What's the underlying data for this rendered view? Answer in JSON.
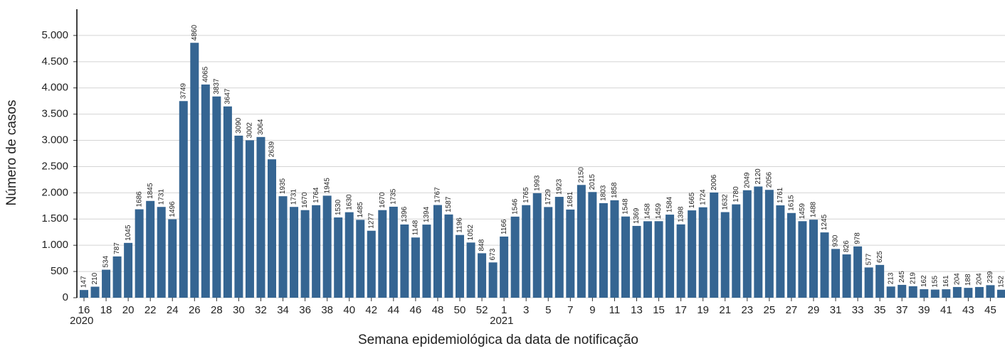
{
  "chart_data": {
    "type": "bar",
    "y_label": "Número de casos",
    "x_label": "Semana epidemiológica da data de notificação",
    "annotations": [
      "2020",
      "2021"
    ],
    "categories": [
      "16",
      null,
      "18",
      null,
      "20",
      null,
      "22",
      null,
      "24",
      null,
      "26",
      null,
      "28",
      null,
      "30",
      null,
      "32",
      null,
      "34",
      null,
      "36",
      null,
      "38",
      null,
      "40",
      null,
      "42",
      null,
      "44",
      null,
      "46",
      null,
      "48",
      null,
      "50",
      null,
      "52",
      null,
      "1",
      null,
      "3",
      null,
      "5",
      null,
      "7",
      null,
      "9",
      null,
      "11",
      null,
      "13",
      null,
      "15",
      null,
      "17",
      null,
      "19",
      null,
      "21",
      null,
      "23",
      null,
      "25",
      null,
      "27",
      null,
      "29",
      null,
      "31",
      null,
      "33",
      null,
      "35",
      null,
      "37",
      null,
      "39",
      null,
      "41",
      null,
      "43",
      null,
      "45",
      null
    ],
    "values": [
      147,
      210,
      534,
      787,
      1045,
      1686,
      1845,
      1731,
      1496,
      3749,
      4860,
      4065,
      3837,
      3647,
      3090,
      3002,
      3064,
      2639,
      1935,
      1731,
      1670,
      1764,
      1945,
      1530,
      1630,
      1485,
      1277,
      1670,
      1735,
      1396,
      1148,
      1394,
      1767,
      1587,
      1196,
      1052,
      848,
      673,
      1166,
      1546,
      1765,
      1993,
      1729,
      1923,
      1681,
      2150,
      2015,
      1803,
      1858,
      1548,
      1369,
      1458,
      1459,
      1584,
      1398,
      1665,
      1724,
      2006,
      1632,
      1780,
      2049,
      2120,
      2056,
      1761,
      1615,
      1459,
      1488,
      1245,
      930,
      826,
      978,
      577,
      625,
      213,
      245,
      219,
      162,
      155,
      161,
      204,
      188,
      204,
      239,
      152
    ],
    "color": "#356592",
    "ylim": [
      0,
      5500
    ],
    "yticks": [
      0,
      500,
      {
        "value": 1000,
        "label": "1.000"
      },
      {
        "value": 1500,
        "label": "1.500"
      },
      {
        "value": 2000,
        "label": "2.000"
      },
      {
        "value": 2500,
        "label": "2.500"
      },
      {
        "value": 3000,
        "label": "3.000"
      },
      {
        "value": 3500,
        "label": "3.500"
      },
      {
        "value": 4000,
        "label": "4.000"
      },
      {
        "value": 4500,
        "label": "4.500"
      },
      {
        "value": 5000,
        "label": "5.000"
      }
    ],
    "grid": true
  }
}
